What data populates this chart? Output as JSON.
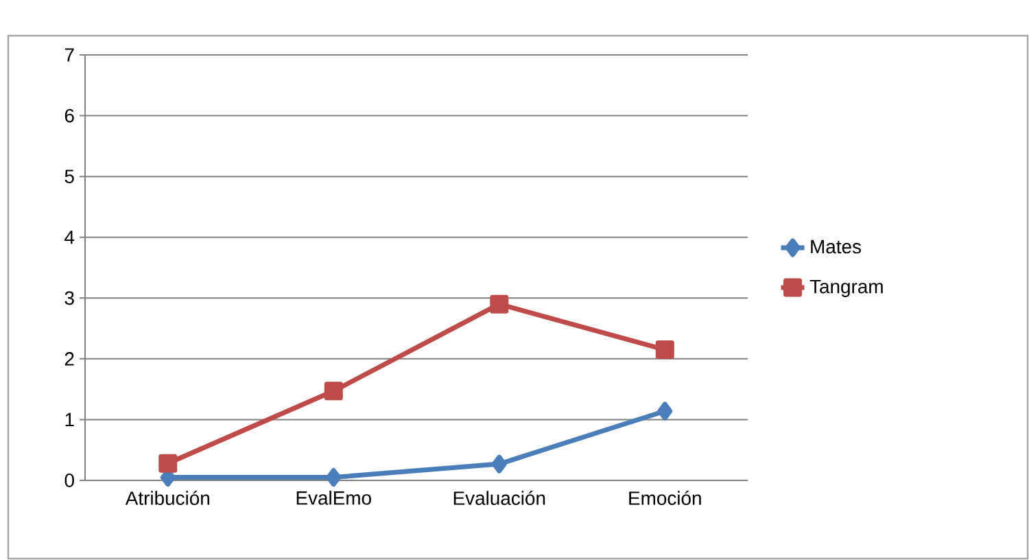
{
  "chart_data": {
    "type": "line",
    "categories": [
      "Atribución",
      "EvalEmo",
      "Evaluación",
      "Emoción"
    ],
    "series": [
      {
        "name": "Mates",
        "color": "#4a7ebb",
        "marker": "diamond",
        "values": [
          0.05,
          0.05,
          0.27,
          1.14
        ]
      },
      {
        "name": "Tangram",
        "color": "#be4b48",
        "marker": "square",
        "values": [
          0.28,
          1.47,
          2.9,
          2.15
        ]
      }
    ],
    "ylim": [
      0,
      7
    ],
    "yticks": [
      0,
      1,
      2,
      3,
      4,
      5,
      6,
      7
    ],
    "grid": "y",
    "legend": "right"
  }
}
